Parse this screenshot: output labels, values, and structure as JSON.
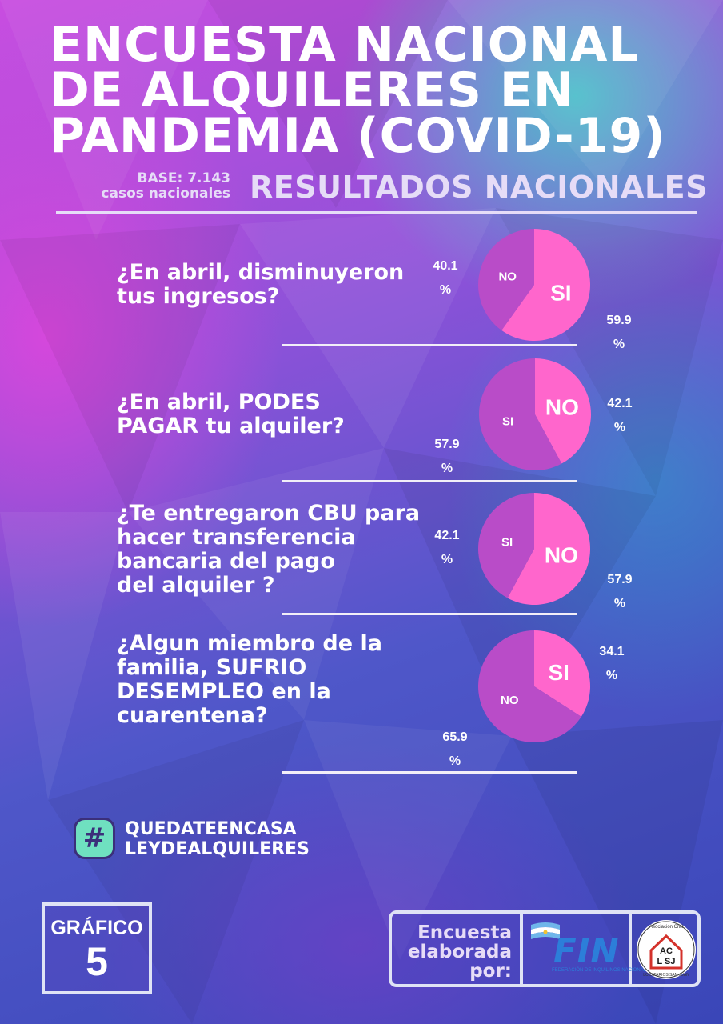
{
  "header": {
    "title_lines": [
      "ENCUESTA NACIONAL",
      "DE ALQUILERES EN",
      "PANDEMIA (COVID-19)"
    ],
    "base_lines": [
      "BASE: 7.143",
      "casos nacionales"
    ],
    "subtitle": "RESULTADOS NACIONALES"
  },
  "colors": {
    "pie_primary": "#ff66cc",
    "pie_secondary": "#b94cc8",
    "text": "#ffffff",
    "subtitle": "#e6dcf7"
  },
  "chart_data": [
    {
      "type": "pie",
      "title": "¿En abril, disminuyeron tus ingresos?",
      "question_lines": [
        "¿En abril, disminuyeron",
        "tus ingresos?"
      ],
      "slices": [
        {
          "label": "SI",
          "value": 59.9,
          "pct_text": [
            "59.9",
            "%"
          ]
        },
        {
          "label": "NO",
          "value": 40.1,
          "pct_text": [
            "40.1",
            "%"
          ]
        }
      ]
    },
    {
      "type": "pie",
      "title": "¿En abril, PODES PAGAR tu alquiler?",
      "question_lines": [
        "¿En abril, PODES",
        "PAGAR tu alquiler?"
      ],
      "slices": [
        {
          "label": "NO",
          "value": 42.1,
          "pct_text": [
            "42.1",
            "%"
          ]
        },
        {
          "label": "SI",
          "value": 57.9,
          "pct_text": [
            "57.9",
            "%"
          ]
        }
      ]
    },
    {
      "type": "pie",
      "title": "¿Te entregaron CBU para hacer transferencia bancaria del pago del alquiler ?",
      "question_lines": [
        "¿Te entregaron CBU para",
        "hacer transferencia",
        "bancaria del pago",
        "del alquiler ?"
      ],
      "slices": [
        {
          "label": "NO",
          "value": 57.9,
          "pct_text": [
            "57.9",
            "%"
          ]
        },
        {
          "label": "SI",
          "value": 42.1,
          "pct_text": [
            "42.1",
            "%"
          ]
        }
      ]
    },
    {
      "type": "pie",
      "title": "¿Algun miembro de la familia, SUFRIO DESEMPLEO en la cuarentena?",
      "question_lines": [
        "¿Algun miembro de la",
        "familia, SUFRIO",
        "DESEMPLEO en la",
        "cuarentena?"
      ],
      "slices": [
        {
          "label": "SI",
          "value": 34.1,
          "pct_text": [
            "34.1",
            "%"
          ]
        },
        {
          "label": "NO",
          "value": 65.9,
          "pct_text": [
            "65.9",
            "%"
          ]
        }
      ]
    }
  ],
  "footer": {
    "hashtag_symbol": "#",
    "hashtags": [
      "QUEDATEENCASA",
      "LEYDEALQUILERES"
    ],
    "grafico_label": "GRÁFICO",
    "grafico_number": "5",
    "credit_lines": [
      "Encuesta",
      "elaborada",
      "por:"
    ],
    "fin_logo_text": "FIN",
    "fin_logo_sub": "FEDERACIÓN DE INQUILINOS NACIONAL",
    "acsj_top": "Asociación Civil",
    "acsj_mid": "AC",
    "acsj_low": "L SJ",
    "acsj_bottom": "LOCATARIOS SAN JUAN"
  }
}
